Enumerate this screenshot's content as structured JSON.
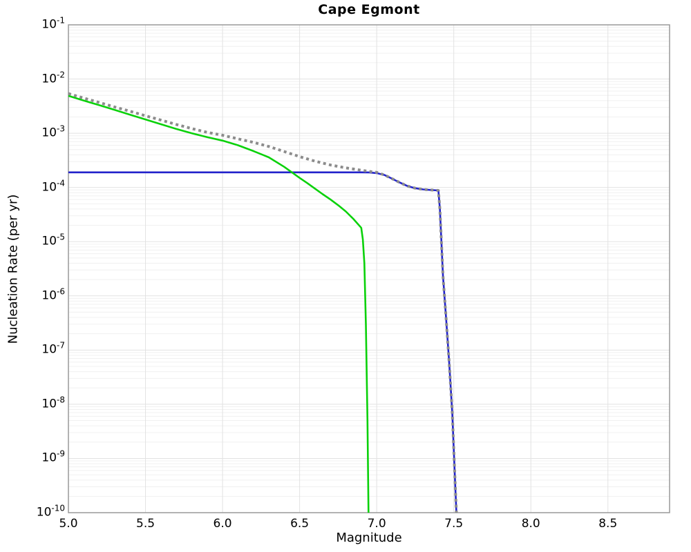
{
  "chart_data": {
    "type": "line",
    "title": "Cape Egmont",
    "xlabel": "Magnitude",
    "ylabel": "Nucleation Rate (per yr)",
    "xlim": [
      5.0,
      8.9
    ],
    "ylim": [
      1e-10,
      0.1
    ],
    "ylim_log10": [
      -10,
      -1
    ],
    "x_scale": "linear",
    "y_scale": "log",
    "grid": true,
    "legend": "none",
    "colors": {
      "grid_major": "#e2e2e2",
      "grid_minor": "#f0f0f0",
      "plot_border": "#999999",
      "background": "#ffffff"
    },
    "x_ticks": [
      {
        "value": 5.0,
        "label": "5.0"
      },
      {
        "value": 5.5,
        "label": "5.5"
      },
      {
        "value": 6.0,
        "label": "6.0"
      },
      {
        "value": 6.5,
        "label": "6.5"
      },
      {
        "value": 7.0,
        "label": "7.0"
      },
      {
        "value": 7.5,
        "label": "7.5"
      },
      {
        "value": 8.0,
        "label": "8.0"
      },
      {
        "value": 8.5,
        "label": "8.5"
      }
    ],
    "y_ticks": [
      {
        "base": "10",
        "exp": "-1"
      },
      {
        "base": "10",
        "exp": "-2"
      },
      {
        "base": "10",
        "exp": "-3"
      },
      {
        "base": "10",
        "exp": "-4"
      },
      {
        "base": "10",
        "exp": "-5"
      },
      {
        "base": "10",
        "exp": "-6"
      },
      {
        "base": "10",
        "exp": "-7"
      },
      {
        "base": "10",
        "exp": "-8"
      },
      {
        "base": "10",
        "exp": "-9"
      },
      {
        "base": "10",
        "exp": "-10"
      }
    ],
    "series": [
      {
        "name": "blue-solid-curve",
        "color": "#2323cc",
        "style": "solid",
        "width": 2.6,
        "points": [
          [
            5.0,
            0.00019
          ],
          [
            5.5,
            0.00019
          ],
          [
            6.0,
            0.00019
          ],
          [
            6.5,
            0.00019
          ],
          [
            6.9,
            0.00019
          ],
          [
            6.95,
            0.000189
          ],
          [
            7.0,
            0.000184
          ],
          [
            7.05,
            0.00017
          ],
          [
            7.1,
            0.000145
          ],
          [
            7.15,
            0.000123
          ],
          [
            7.2,
            0.000106
          ],
          [
            7.25,
            9.7e-05
          ],
          [
            7.3,
            9.2e-05
          ],
          [
            7.35,
            9e-05
          ],
          [
            7.4,
            8.8e-05
          ],
          [
            7.41,
            4e-05
          ],
          [
            7.42,
            1e-05
          ],
          [
            7.43,
            2.3e-06
          ],
          [
            7.45,
            4e-07
          ],
          [
            7.47,
            6e-08
          ],
          [
            7.49,
            7e-09
          ],
          [
            7.51,
            3e-10
          ],
          [
            7.517,
            1e-10
          ]
        ]
      },
      {
        "name": "green-solid-curve",
        "color": "#0ad10a",
        "style": "solid",
        "width": 2.6,
        "points": [
          [
            5.0,
            0.0049
          ],
          [
            5.1,
            0.004
          ],
          [
            5.2,
            0.0033
          ],
          [
            5.3,
            0.0027
          ],
          [
            5.4,
            0.0022
          ],
          [
            5.5,
            0.0018
          ],
          [
            5.6,
            0.00147
          ],
          [
            5.7,
            0.0012
          ],
          [
            5.8,
            0.001
          ],
          [
            5.9,
            0.00085
          ],
          [
            6.0,
            0.00073
          ],
          [
            6.1,
            0.0006
          ],
          [
            6.2,
            0.00047
          ],
          [
            6.3,
            0.00036
          ],
          [
            6.4,
            0.00024
          ],
          [
            6.5,
            0.00015
          ],
          [
            6.55,
            0.00012
          ],
          [
            6.6,
            9.5e-05
          ],
          [
            6.65,
            7.5e-05
          ],
          [
            6.7,
            6e-05
          ],
          [
            6.75,
            4.7e-05
          ],
          [
            6.8,
            3.6e-05
          ],
          [
            6.85,
            2.6e-05
          ],
          [
            6.9,
            1.8e-05
          ],
          [
            6.91,
            1.1e-05
          ],
          [
            6.92,
            4e-06
          ],
          [
            6.93,
            3e-07
          ],
          [
            6.94,
            5e-09
          ],
          [
            6.947,
            1e-10
          ]
        ]
      },
      {
        "name": "gray-dotted-total-curve",
        "color": "#8c8c8c",
        "style": "dotted",
        "width": 4,
        "points": [
          [
            5.0,
            0.0054
          ],
          [
            5.1,
            0.00445
          ],
          [
            5.2,
            0.0037
          ],
          [
            5.3,
            0.00305
          ],
          [
            5.4,
            0.00255
          ],
          [
            5.5,
            0.0021
          ],
          [
            5.6,
            0.00175
          ],
          [
            5.7,
            0.00145
          ],
          [
            5.8,
            0.00122
          ],
          [
            5.9,
            0.00104
          ],
          [
            6.0,
            0.00092
          ],
          [
            6.1,
            0.00079
          ],
          [
            6.2,
            0.00068
          ],
          [
            6.3,
            0.00057
          ],
          [
            6.4,
            0.00046
          ],
          [
            6.5,
            0.00037
          ],
          [
            6.6,
            0.000305
          ],
          [
            6.7,
            0.00026
          ],
          [
            6.8,
            0.00023
          ],
          [
            6.9,
            0.000208
          ],
          [
            6.95,
            0.000198
          ],
          [
            7.0,
            0.00019
          ],
          [
            7.05,
            0.00017
          ],
          [
            7.1,
            0.000145
          ],
          [
            7.15,
            0.000123
          ],
          [
            7.2,
            0.000106
          ],
          [
            7.25,
            9.7e-05
          ],
          [
            7.3,
            9.2e-05
          ],
          [
            7.35,
            9e-05
          ],
          [
            7.4,
            8.8e-05
          ],
          [
            7.41,
            4e-05
          ],
          [
            7.42,
            1e-05
          ],
          [
            7.43,
            2.3e-06
          ],
          [
            7.45,
            4e-07
          ],
          [
            7.47,
            6e-08
          ],
          [
            7.49,
            7e-09
          ],
          [
            7.51,
            3e-10
          ],
          [
            7.517,
            1e-10
          ]
        ]
      }
    ]
  }
}
